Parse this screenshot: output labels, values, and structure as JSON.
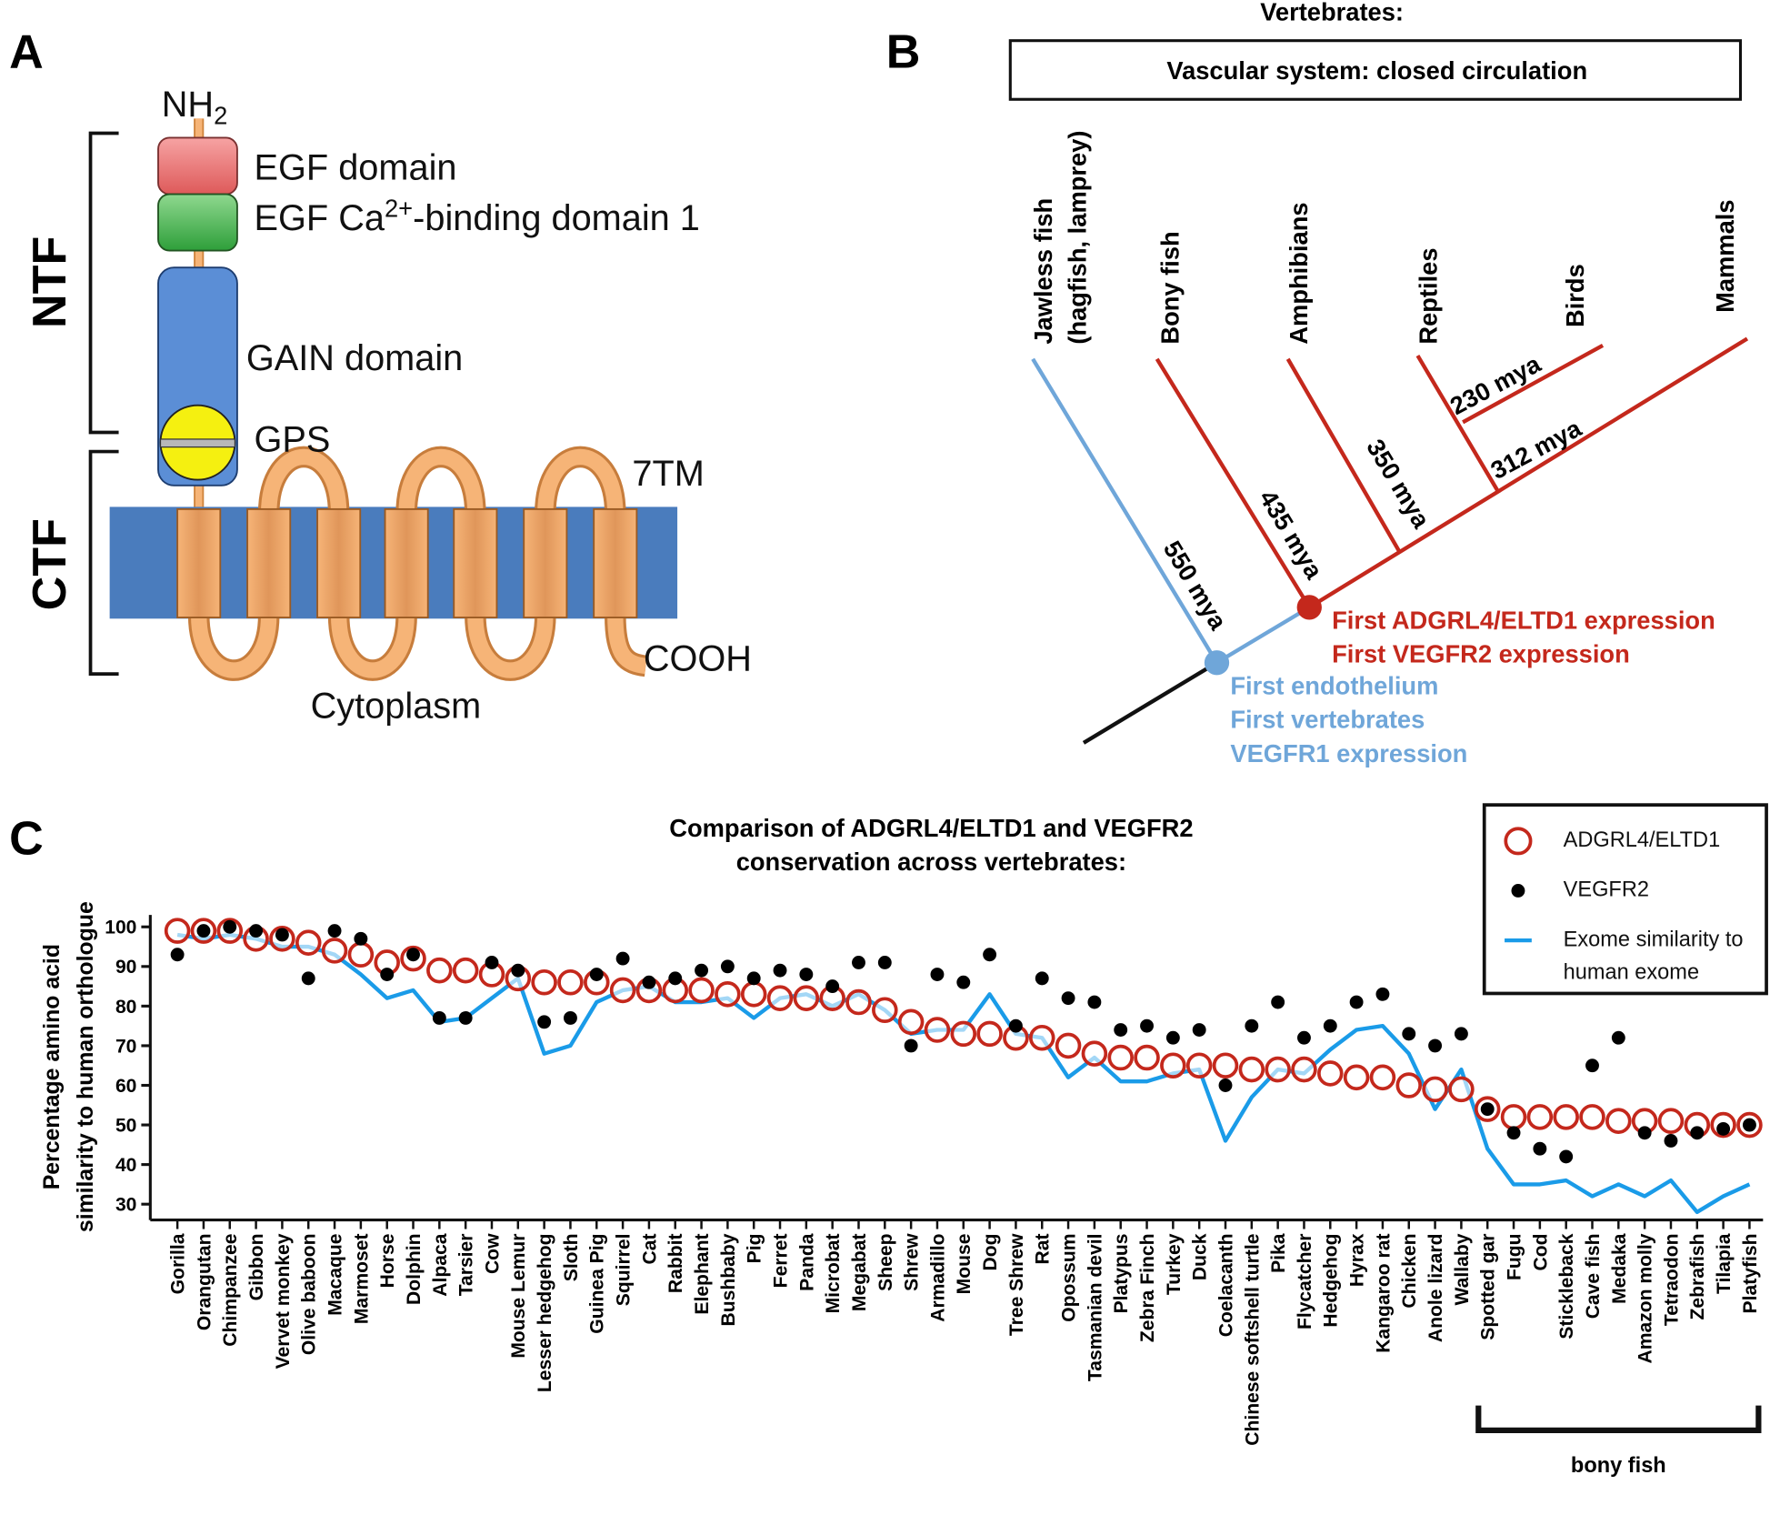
{
  "panel_a": {
    "label": "A",
    "ntf": "NTF",
    "ctf": "CTF",
    "nh2": {
      "text": "NH",
      "sub": "2"
    },
    "egf": "EGF domain",
    "egf_ca": {
      "text": "EGF Ca",
      "sup": "2+",
      "rest": "-binding domain 1"
    },
    "gain": "GAIN domain",
    "gps": "GPS",
    "tm": "7TM",
    "cooh": "COOH",
    "cytoplasm": "Cytoplasm"
  },
  "panel_b": {
    "label": "B",
    "heading": "Vertebrates:",
    "box": "Vascular system: closed circulation",
    "leaves": [
      "Jawless fish",
      "(hagfish, lamprey)",
      "Bony fish",
      "Amphibians",
      "Reptiles",
      "Birds",
      "Mammals"
    ],
    "branch_labels": [
      "550 mya",
      "435 mya",
      "350 mya",
      "312 mya",
      "230 mya"
    ],
    "red_notes": [
      "First ADGRL4/ELTD1 expression",
      "First VEGFR2 expression"
    ],
    "blue_notes": [
      "First endothelium",
      "First vertebrates",
      "VEGFR1 expression"
    ]
  },
  "panel_c": {
    "label": "C"
  },
  "chart_data": {
    "type": "line",
    "title": [
      "Comparison of ADGRL4/ELTD1 and VEGFR2",
      "conservation across vertebrates:"
    ],
    "y_label": [
      "Percentage amino acid",
      "similarity to human orthologue"
    ],
    "categories": [
      "Gorilla",
      "Orangutan",
      "Chimpanzee",
      "Gibbon",
      "Vervet monkey",
      "Olive baboon",
      "Macaque",
      "Marmoset",
      "Horse",
      "Dolphin",
      "Alpaca",
      "Tarsier",
      "Cow",
      "Mouse Lemur",
      "Lesser hedgehog",
      "Sloth",
      "Guinea Pig",
      "Squirrel",
      "Cat",
      "Rabbit",
      "Elephant",
      "Bushbaby",
      "Pig",
      "Ferret",
      "Panda",
      "Microbat",
      "Megabat",
      "Sheep",
      "Shrew",
      "Armadillo",
      "Mouse",
      "Dog",
      "Tree Shrew",
      "Rat",
      "Opossum",
      "Tasmanian devil",
      "Platypus",
      "Zebra Finch",
      "Turkey",
      "Duck",
      "Coelacanth",
      "Chinese softshell turtle",
      "Pika",
      "Flycatcher",
      "Hedgehog",
      "Hyrax",
      "Kangaroo rat",
      "Chicken",
      "Anole lizard",
      "Wallaby",
      "Spotted gar",
      "Fugu",
      "Cod",
      "Stickleback",
      "Cave fish",
      "Medaka",
      "Amazon molly",
      "Tetraodon",
      "Zebrafish",
      "Tilapia",
      "Platyfish"
    ],
    "series": [
      {
        "name": "ADGRL4/ELTD1",
        "color": "#c4281c",
        "style": "open-circle",
        "values": [
          99,
          99,
          99,
          97,
          97,
          96,
          94,
          93,
          91,
          92,
          89,
          89,
          88,
          87,
          86,
          86,
          86,
          84,
          84,
          84,
          84,
          83,
          83,
          82,
          82,
          82,
          81,
          79,
          76,
          74,
          73,
          73,
          72,
          72,
          70,
          68,
          67,
          67,
          65,
          65,
          65,
          64,
          64,
          64,
          63,
          62,
          62,
          60,
          59,
          59,
          54,
          52,
          52,
          52,
          52,
          51,
          51,
          51,
          50,
          50,
          50
        ]
      },
      {
        "name": "VEGFR2",
        "color": "#000000",
        "style": "dot",
        "values": [
          93,
          99,
          100,
          99,
          98,
          87,
          99,
          97,
          88,
          93,
          77,
          77,
          91,
          89,
          76,
          77,
          88,
          92,
          86,
          87,
          89,
          90,
          87,
          89,
          88,
          85,
          91,
          91,
          70,
          88,
          86,
          93,
          75,
          87,
          82,
          81,
          74,
          75,
          72,
          74,
          60,
          75,
          81,
          72,
          75,
          81,
          83,
          73,
          70,
          73,
          54,
          48,
          44,
          42,
          65,
          72,
          48,
          46,
          48,
          49,
          50
        ]
      },
      {
        "name": "Exome similarity to human exome",
        "color": "#1a9be8",
        "style": "line",
        "values": [
          98,
          97,
          98,
          97,
          95,
          95,
          93,
          88,
          82,
          84,
          76,
          77,
          82,
          87,
          68,
          70,
          81,
          84,
          85,
          81,
          81,
          82,
          77,
          82,
          83,
          80,
          83,
          79,
          73,
          74,
          74,
          83,
          73,
          72,
          62,
          67,
          61,
          61,
          63,
          64,
          46,
          57,
          64,
          63,
          69,
          74,
          75,
          68,
          54,
          64,
          44,
          35,
          35,
          36,
          32,
          35,
          32,
          36,
          28,
          32,
          35
        ]
      }
    ],
    "ylim": [
      26,
      103
    ],
    "yticks": [
      30,
      40,
      50,
      60,
      70,
      80,
      90,
      100
    ],
    "annotation": "bony fish",
    "legend": "top-right"
  }
}
